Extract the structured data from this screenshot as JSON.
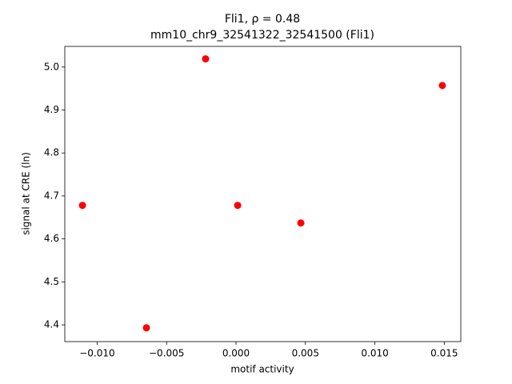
{
  "chart_data": {
    "type": "scatter",
    "title": "Fli1, ρ = 0.48",
    "subtitle": "mm10_chr9_32541322_32541500 (Fli1)",
    "x_label": "motif activity",
    "y_label": "signal at CRE (ln)",
    "x": [
      -0.01106,
      -0.00645,
      -0.00219,
      0.00012,
      0.00467,
      0.01486
    ],
    "values": [
      4.678,
      4.393,
      5.019,
      4.678,
      4.637,
      4.957
    ],
    "color": "#ff0000",
    "xlim": [
      -0.01233,
      0.01619
    ],
    "ylim": [
      4.361,
      5.048
    ],
    "xticks": [
      {
        "value": -0.01,
        "label": "−0.010"
      },
      {
        "value": -0.005,
        "label": "−0.005"
      },
      {
        "value": 0,
        "label": "0.000"
      },
      {
        "value": 0.005,
        "label": "0.005"
      },
      {
        "value": 0.01,
        "label": "0.010"
      },
      {
        "value": 0.015,
        "label": "0.015"
      }
    ],
    "yticks": [
      4.4,
      4.5,
      4.6,
      4.7,
      4.8,
      4.9,
      {
        "value": 5,
        "label": "5.0"
      }
    ],
    "grid": false
  }
}
